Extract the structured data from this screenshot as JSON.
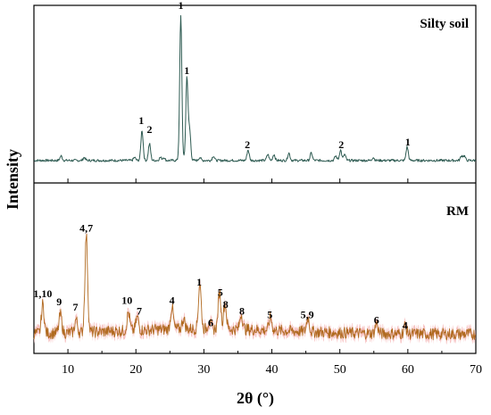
{
  "chart_data": {
    "type": "line",
    "xlabel": "2θ (°)",
    "ylabel": "Intensity",
    "xlim": [
      5,
      70
    ],
    "xticks": [
      "10",
      "20",
      "30",
      "40",
      "50",
      "60",
      "70"
    ],
    "panels": [
      {
        "title": "Silty soil",
        "color": "#2e5b52",
        "baseline": 0.06,
        "noise": 0.008,
        "peaks": [
          {
            "x": 9.0,
            "h": 0.03
          },
          {
            "x": 12.4,
            "h": 0.02
          },
          {
            "x": 19.8,
            "h": 0.02
          },
          {
            "x": 20.9,
            "h": 0.2
          },
          {
            "x": 22.0,
            "h": 0.11
          },
          {
            "x": 23.6,
            "h": 0.02
          },
          {
            "x": 24.1,
            "h": 0.02
          },
          {
            "x": 26.6,
            "h": 0.95
          },
          {
            "x": 27.5,
            "h": 0.55
          },
          {
            "x": 27.9,
            "h": 0.2
          },
          {
            "x": 29.4,
            "h": 0.02
          },
          {
            "x": 31.4,
            "h": 0.03
          },
          {
            "x": 36.5,
            "h": 0.07
          },
          {
            "x": 39.4,
            "h": 0.04
          },
          {
            "x": 40.3,
            "h": 0.04
          },
          {
            "x": 42.5,
            "h": 0.05
          },
          {
            "x": 45.8,
            "h": 0.05
          },
          {
            "x": 49.4,
            "h": 0.03
          },
          {
            "x": 50.1,
            "h": 0.07
          },
          {
            "x": 50.7,
            "h": 0.04
          },
          {
            "x": 54.9,
            "h": 0.02
          },
          {
            "x": 59.9,
            "h": 0.09
          },
          {
            "x": 67.9,
            "h": 0.03
          },
          {
            "x": 68.3,
            "h": 0.03
          }
        ],
        "labels": [
          {
            "text": "1",
            "x": 20.8,
            "y": 0.3
          },
          {
            "text": "2",
            "x": 22.0,
            "y": 0.24
          },
          {
            "text": "1",
            "x": 26.6,
            "y": 1.06
          },
          {
            "text": "1",
            "x": 27.5,
            "y": 0.63
          },
          {
            "text": "2",
            "x": 36.4,
            "y": 0.14
          },
          {
            "text": "2",
            "x": 50.2,
            "y": 0.14
          },
          {
            "text": "1",
            "x": 60.0,
            "y": 0.16
          }
        ]
      },
      {
        "title": "RM",
        "color": "#b06a1f",
        "band_color": "#f6b9b9",
        "baseline": 0.12,
        "noise": 0.045,
        "peaks": [
          {
            "x": 6.3,
            "h": 0.22
          },
          {
            "x": 8.9,
            "h": 0.14
          },
          {
            "x": 11.2,
            "h": 0.1
          },
          {
            "x": 12.7,
            "h": 0.74
          },
          {
            "x": 18.9,
            "h": 0.14
          },
          {
            "x": 20.2,
            "h": 0.1
          },
          {
            "x": 25.3,
            "h": 0.17
          },
          {
            "x": 27.0,
            "h": 0.08
          },
          {
            "x": 29.4,
            "h": 0.35
          },
          {
            "x": 30.8,
            "h": 0.06
          },
          {
            "x": 32.3,
            "h": 0.28
          },
          {
            "x": 33.1,
            "h": 0.2
          },
          {
            "x": 35.5,
            "h": 0.12
          },
          {
            "x": 39.8,
            "h": 0.1
          },
          {
            "x": 45.3,
            "h": 0.11
          },
          {
            "x": 55.4,
            "h": 0.08
          },
          {
            "x": 59.6,
            "h": 0.06
          }
        ],
        "labels": [
          {
            "text": "1,10",
            "x": 6.3,
            "y": 0.4
          },
          {
            "text": "9",
            "x": 8.7,
            "y": 0.34
          },
          {
            "text": "7",
            "x": 11.1,
            "y": 0.3
          },
          {
            "text": "4,7",
            "x": 12.7,
            "y": 0.9
          },
          {
            "text": "10",
            "x": 18.7,
            "y": 0.35
          },
          {
            "text": "7",
            "x": 20.5,
            "y": 0.27
          },
          {
            "text": "4",
            "x": 25.3,
            "y": 0.35
          },
          {
            "text": "1",
            "x": 29.3,
            "y": 0.49
          },
          {
            "text": "6",
            "x": 31.0,
            "y": 0.18
          },
          {
            "text": "5",
            "x": 32.4,
            "y": 0.41
          },
          {
            "text": "8",
            "x": 33.2,
            "y": 0.32
          },
          {
            "text": "8",
            "x": 35.6,
            "y": 0.27
          },
          {
            "text": "5",
            "x": 39.7,
            "y": 0.24
          },
          {
            "text": "5,9",
            "x": 45.2,
            "y": 0.24
          },
          {
            "text": "6",
            "x": 55.4,
            "y": 0.2
          },
          {
            "text": "4",
            "x": 59.6,
            "y": 0.16
          }
        ]
      }
    ]
  }
}
